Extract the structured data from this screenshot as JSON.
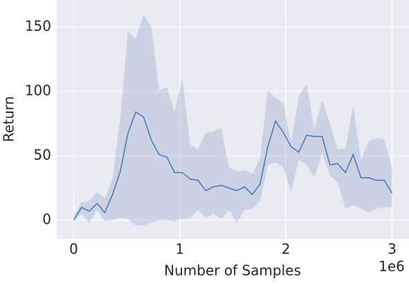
{
  "chart_data": {
    "type": "line",
    "xlabel": "Number of Samples",
    "ylabel": "Return",
    "x_offset_label": "1e6",
    "x": [
      0,
      0.073,
      0.146,
      0.22,
      0.293,
      0.366,
      0.439,
      0.512,
      0.585,
      0.659,
      0.732,
      0.805,
      0.878,
      0.951,
      1.024,
      1.098,
      1.171,
      1.244,
      1.317,
      1.39,
      1.463,
      1.537,
      1.61,
      1.683,
      1.756,
      1.829,
      1.902,
      1.976,
      2.049,
      2.122,
      2.195,
      2.268,
      2.341,
      2.415,
      2.488,
      2.561,
      2.634,
      2.707,
      2.78,
      2.854,
      2.927,
      3.0
    ],
    "series": [
      {
        "color": "#4c72b0",
        "values": [
          0,
          10,
          7,
          13,
          6,
          20,
          38,
          68,
          84,
          80,
          62,
          51,
          49,
          37,
          37,
          32,
          31,
          23,
          26,
          27,
          25,
          23,
          26,
          20,
          28,
          57,
          77,
          68,
          57,
          53,
          66,
          65,
          65,
          43,
          44,
          37,
          51,
          33,
          33,
          31,
          31,
          21
        ],
        "upper": [
          3,
          14,
          15,
          22,
          17,
          32,
          80,
          147,
          141,
          160,
          150,
          101,
          103,
          84,
          110,
          59,
          55,
          68,
          69,
          72,
          41,
          38,
          39,
          36,
          48,
          101,
          95,
          91,
          61,
          96,
          106,
          70,
          93,
          75,
          55,
          56,
          89,
          47,
          61,
          64,
          63,
          40
        ],
        "lower": [
          0,
          5,
          -2,
          8,
          -1,
          0,
          2,
          1,
          -4,
          -4,
          -2,
          0,
          0,
          -1,
          1,
          2,
          8,
          2,
          5,
          1,
          8,
          -2,
          8,
          9,
          15,
          43,
          45,
          41,
          22,
          47,
          43,
          33,
          52,
          35,
          29,
          9,
          12,
          9,
          6,
          9,
          10,
          10
        ]
      }
    ],
    "xlim": [
      -0.16,
      3.16
    ],
    "ylim": [
      -14.5,
      171
    ],
    "xticks": [
      0,
      1,
      2,
      3
    ],
    "yticks": [
      0,
      50,
      100,
      150
    ],
    "grid": true,
    "background": "#eaeaf2"
  }
}
